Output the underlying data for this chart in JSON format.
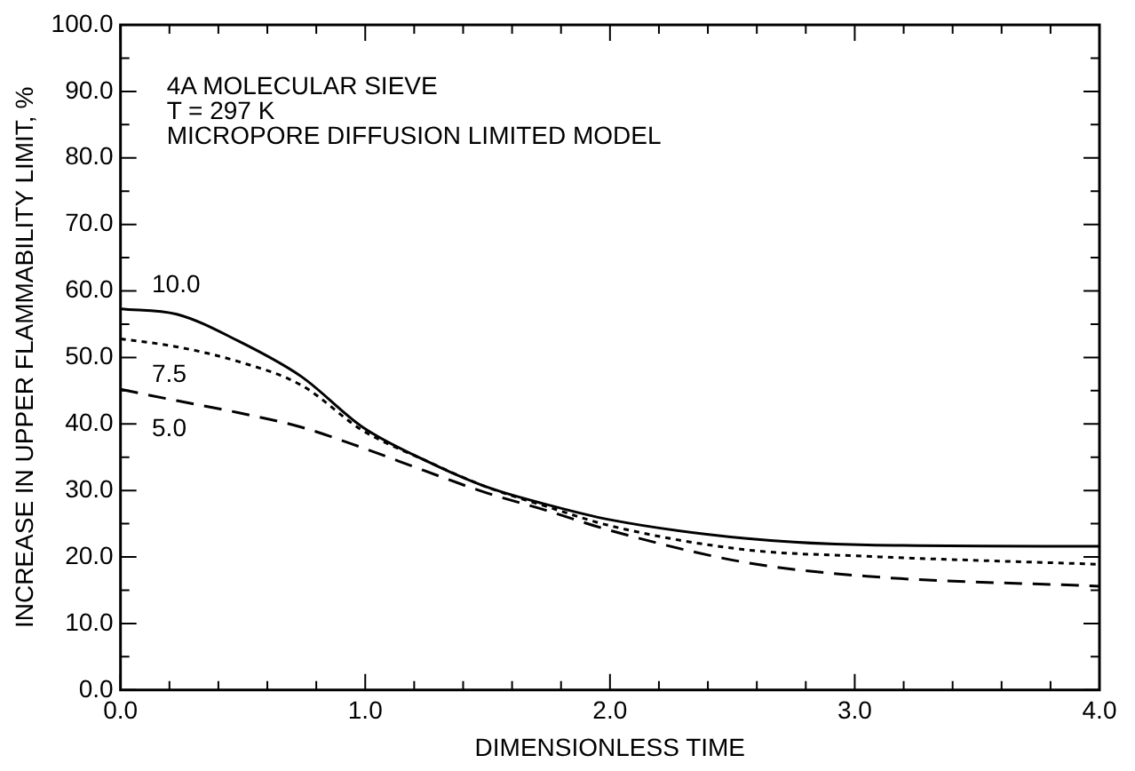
{
  "chart_data": {
    "type": "line",
    "xlabel": "DIMENSIONLESS TIME",
    "ylabel": "INCREASE IN UPPER FLAMMABILITY LIMIT, %",
    "annotations": [
      "4A MOLECULAR SIEVE",
      "T = 297 K",
      "MICROPORE DIFFUSION LIMITED MODEL"
    ],
    "x": [
      0,
      0.23,
      0.48,
      0.74,
      0.99,
      1.24,
      1.49,
      1.74,
      2.0,
      2.55,
      3.05,
      4.0
    ],
    "series": [
      {
        "name": "10.0",
        "color": "#000000",
        "line_style": "solid",
        "values": [
          57.3,
          56.5,
          52.5,
          47.1,
          39.5,
          34.6,
          30.6,
          27.9,
          25.6,
          22.8,
          21.8,
          21.6
        ]
      },
      {
        "name": "7.5",
        "color": "#000000",
        "line_style": "dotted",
        "values": [
          52.8,
          51.6,
          49.4,
          45.8,
          39.0,
          34.6,
          30.6,
          27.6,
          24.7,
          21.1,
          20.1,
          18.9
        ]
      },
      {
        "name": "5.0",
        "color": "#000000",
        "line_style": "dashed",
        "values": [
          45.2,
          43.5,
          41.7,
          39.5,
          36.4,
          33.0,
          29.7,
          27.0,
          24.0,
          19.2,
          17.1,
          15.6
        ]
      }
    ],
    "xlim": [
      0,
      4
    ],
    "xticks": [
      {
        "value": 0,
        "label": "0.0"
      },
      {
        "value": 0.2,
        "label": null
      },
      {
        "value": 0.4,
        "label": null
      },
      {
        "value": 0.6,
        "label": null
      },
      {
        "value": 0.8,
        "label": null
      },
      {
        "value": 1,
        "label": "1.0"
      },
      {
        "value": 1.2,
        "label": null
      },
      {
        "value": 1.4,
        "label": null
      },
      {
        "value": 1.6,
        "label": null
      },
      {
        "value": 1.8,
        "label": null
      },
      {
        "value": 2,
        "label": "2.0"
      },
      {
        "value": 2.2,
        "label": null
      },
      {
        "value": 2.4,
        "label": null
      },
      {
        "value": 2.6,
        "label": null
      },
      {
        "value": 2.8,
        "label": null
      },
      {
        "value": 3,
        "label": "3.0"
      },
      {
        "value": 3.2,
        "label": null
      },
      {
        "value": 3.4,
        "label": null
      },
      {
        "value": 3.6,
        "label": null
      },
      {
        "value": 3.8,
        "label": null
      },
      {
        "value": 4,
        "label": "4.0"
      }
    ],
    "ylim": [
      0,
      100
    ],
    "yticks": [
      {
        "value": 0,
        "label": "0.0"
      },
      {
        "value": 5,
        "label": null
      },
      {
        "value": 10,
        "label": "10.0"
      },
      {
        "value": 15,
        "label": null
      },
      {
        "value": 20,
        "label": "20.0"
      },
      {
        "value": 25,
        "label": null
      },
      {
        "value": 30,
        "label": "30.0"
      },
      {
        "value": 35,
        "label": null
      },
      {
        "value": 40,
        "label": "40.0"
      },
      {
        "value": 45,
        "label": null
      },
      {
        "value": 50,
        "label": "50.0"
      },
      {
        "value": 55,
        "label": null
      },
      {
        "value": 60,
        "label": "60.0"
      },
      {
        "value": 65,
        "label": null
      },
      {
        "value": 70,
        "label": "70.0"
      },
      {
        "value": 75,
        "label": null
      },
      {
        "value": 80,
        "label": "80.0"
      },
      {
        "value": 85,
        "label": null
      },
      {
        "value": 90,
        "label": "90.0"
      },
      {
        "value": 95,
        "label": null
      },
      {
        "value": 100,
        "label": "100.0"
      }
    ],
    "grid": false,
    "legend": false
  }
}
